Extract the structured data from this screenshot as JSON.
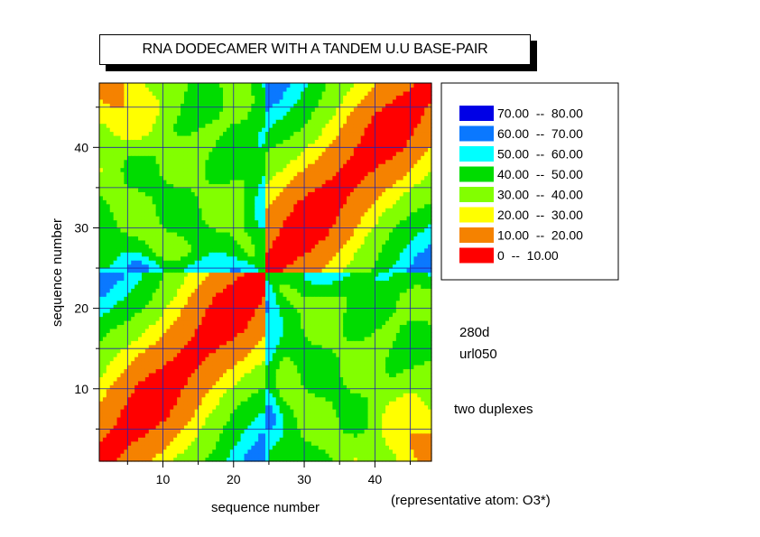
{
  "chart_data": {
    "type": "heatmap",
    "title": "RNA DODECAMER WITH A TANDEM U.U BASE-PAIR",
    "xlabel": "sequence number",
    "ylabel": "sequence number",
    "xlim": [
      1,
      48
    ],
    "ylim": [
      1,
      48
    ],
    "xticks": [
      10,
      20,
      30,
      40
    ],
    "yticks": [
      10,
      20,
      30,
      40
    ],
    "grid": true,
    "legend_position": "right",
    "legend": [
      {
        "label": "70.00  --  80.00",
        "color": "#0000e6",
        "min": 70,
        "max": 80
      },
      {
        "label": "60.00  --  70.00",
        "color": "#0a78ff",
        "min": 60,
        "max": 70
      },
      {
        "label": "50.00  --  60.00",
        "color": "#00ffff",
        "min": 50,
        "max": 60
      },
      {
        "label": "40.00  --  50.00",
        "color": "#00dc00",
        "min": 40,
        "max": 50
      },
      {
        "label": "30.00  --  40.00",
        "color": "#82ff00",
        "min": 30,
        "max": 40
      },
      {
        "label": "20.00  --  30.00",
        "color": "#ffff00",
        "min": 20,
        "max": 30
      },
      {
        "label": "10.00  --  20.00",
        "color": "#f58200",
        "min": 10,
        "max": 20
      },
      {
        "label": "0  --  10.00",
        "color": "#ff0000",
        "min": 0,
        "max": 10
      }
    ],
    "annotations": [
      "280d",
      "url050",
      "two duplexes",
      "(representative atom: O3*)"
    ]
  }
}
